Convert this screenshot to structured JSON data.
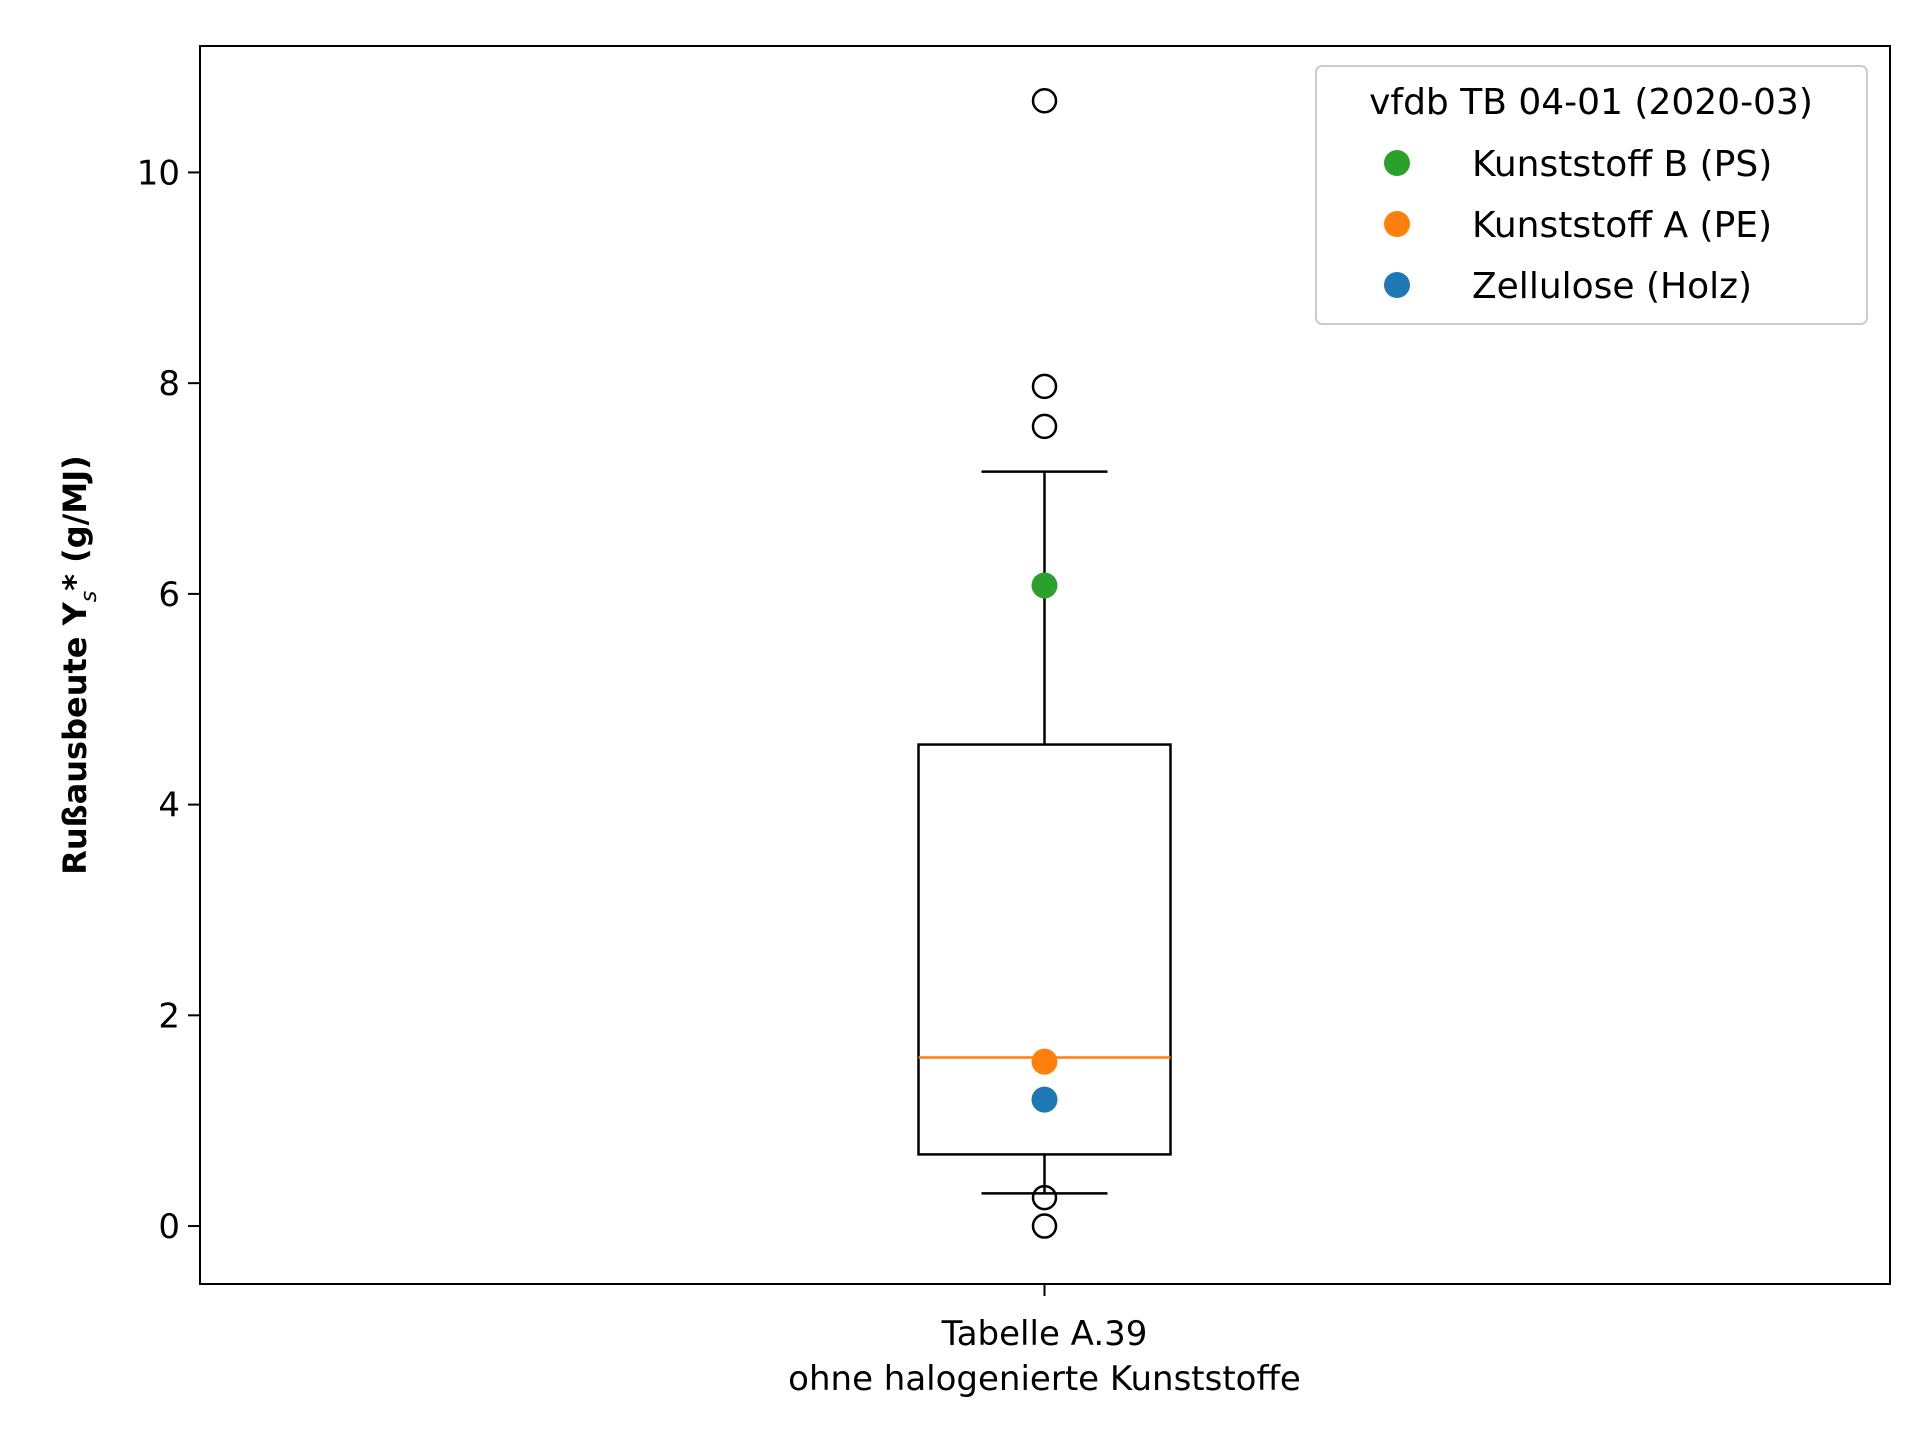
{
  "chart_data": {
    "type": "box",
    "categories": [
      "Tabelle A.39",
      "ohne halogenierte Kunststoffe"
    ],
    "ylabel": "Rußausbeute Y",
    "ylabel_sub": "s",
    "ylabel_suffix": "* (g/MJ)",
    "ylim": [
      -0.55,
      11.2
    ],
    "yticks": [
      0,
      2,
      4,
      6,
      8,
      10
    ],
    "box": {
      "q1": 0.68,
      "median": 1.6,
      "q3": 4.57,
      "whisker_low": 0.31,
      "whisker_high": 7.16,
      "outliers": [
        10.68,
        7.97,
        7.59,
        0.27,
        0.0
      ]
    },
    "median_color": "#ff7f0e",
    "legend": {
      "title": "vfdb TB 04-01 (2020-03)",
      "position": "upper right",
      "entries": [
        {
          "label": "Kunststoff B (PS)",
          "color": "#2ca02c",
          "value": 6.08
        },
        {
          "label": "Kunststoff A (PE)",
          "color": "#ff7f0e",
          "value": 1.56
        },
        {
          "label": "Zellulose (Holz)",
          "color": "#1f77b4",
          "value": 1.2
        }
      ]
    }
  }
}
